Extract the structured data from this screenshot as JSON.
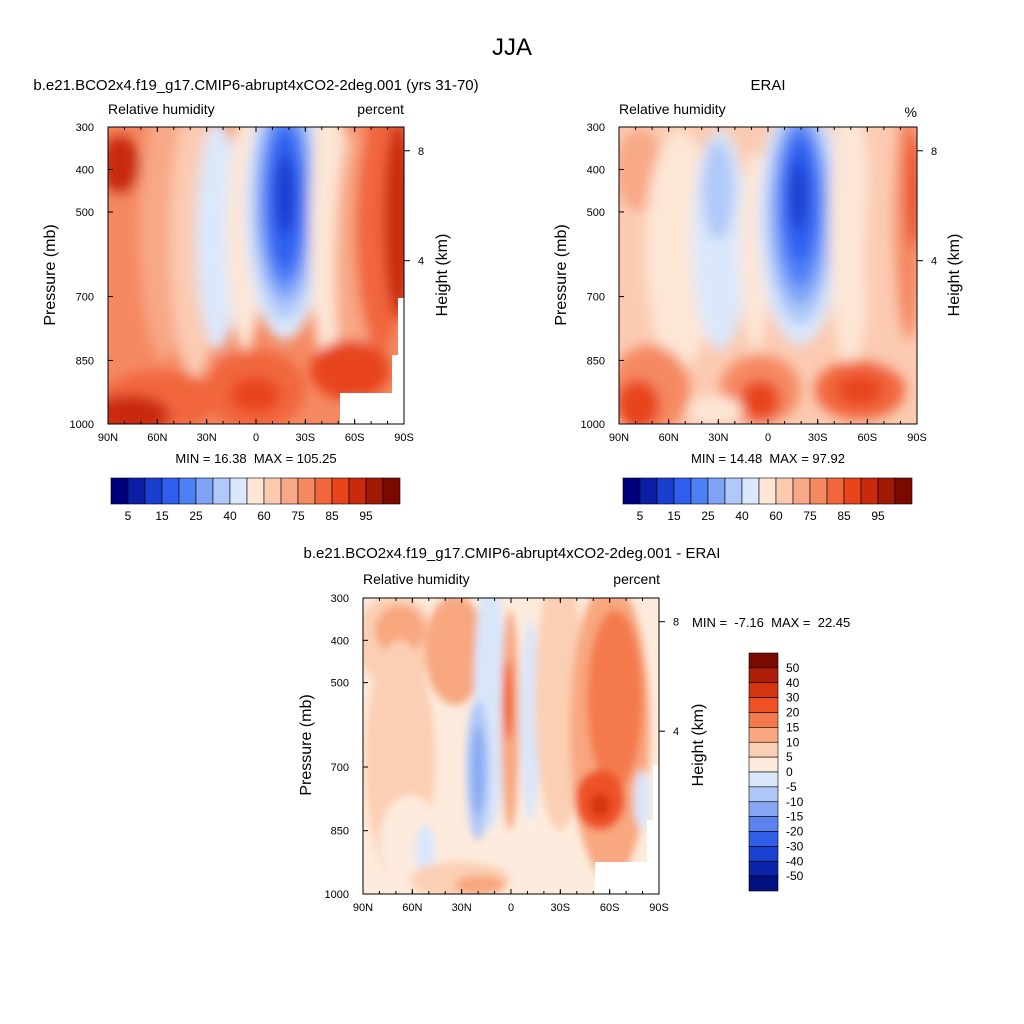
{
  "figure": {
    "title": "JJA"
  },
  "chart_data": [
    {
      "type": "heatmap",
      "title": "b.e21.BCO2x4.f19_g17.CMIP6-abrupt4xCO2-2deg.001 (yrs 31-70)",
      "subtitle_left": "Relative humidity",
      "subtitle_right": "percent",
      "xlabel": "",
      "ylabel": "Pressure (mb)",
      "ylabel_right": "Height (km)",
      "x_ticks": [
        "90N",
        "60N",
        "30N",
        "0",
        "30S",
        "60S",
        "90S"
      ],
      "y_ticks": [
        "300",
        "400",
        "500",
        "700",
        "850",
        "1000"
      ],
      "right_ticks": [
        "8",
        "4"
      ],
      "stats": "MIN = 16.38  MAX = 105.25",
      "colorbar_labels": [
        "5",
        "15",
        "25",
        "40",
        "60",
        "75",
        "85",
        "95"
      ]
    },
    {
      "type": "heatmap",
      "title": "ERAI",
      "subtitle_left": "Relative humidity",
      "subtitle_right": "%",
      "xlabel": "",
      "ylabel": "Pressure (mb)",
      "ylabel_right": "Height (km)",
      "x_ticks": [
        "90N",
        "60N",
        "30N",
        "0",
        "30S",
        "60S",
        "90S"
      ],
      "y_ticks": [
        "300",
        "400",
        "500",
        "700",
        "850",
        "1000"
      ],
      "right_ticks": [
        "8",
        "4"
      ],
      "stats": "MIN = 14.48  MAX = 97.92",
      "colorbar_labels": [
        "5",
        "15",
        "25",
        "40",
        "60",
        "75",
        "85",
        "95"
      ]
    },
    {
      "type": "heatmap",
      "title": "b.e21.BCO2x4.f19_g17.CMIP6-abrupt4xCO2-2deg.001 - ERAI",
      "subtitle_left": "Relative humidity",
      "subtitle_right": "percent",
      "xlabel": "",
      "ylabel": "Pressure (mb)",
      "ylabel_right": "Height (km)",
      "x_ticks": [
        "90N",
        "60N",
        "30N",
        "0",
        "30S",
        "60S",
        "90S"
      ],
      "y_ticks": [
        "300",
        "400",
        "500",
        "700",
        "850",
        "1000"
      ],
      "right_ticks": [
        "8",
        "4"
      ],
      "stats": "MIN =  -7.16  MAX =  22.45",
      "colorbar_labels": [
        "50",
        "40",
        "30",
        "20",
        "15",
        "10",
        "5",
        "0",
        "-5",
        "-10",
        "-15",
        "-20",
        "-30",
        "-40",
        "-50"
      ]
    }
  ],
  "colors": {
    "abs_scale": [
      "#00007f",
      "#0a1fa6",
      "#1a3ed0",
      "#2f5ef0",
      "#4d7ff5",
      "#7ea3f7",
      "#b1c9f9",
      "#dbe8fb",
      "#fde6d6",
      "#fbcab1",
      "#f8a886",
      "#f58962",
      "#f1663c",
      "#e8451f",
      "#c92a0d",
      "#a11a05",
      "#7a0a00"
    ],
    "diff_scale": [
      "#7a0a00",
      "#ac1e07",
      "#d63410",
      "#ef5127",
      "#f47a4e",
      "#f8a77f",
      "#fbcfb3",
      "#fdebdd",
      "#d9e6fa",
      "#b0c8f7",
      "#86a7f3",
      "#5a83ef",
      "#2f5ee8",
      "#1b3fd1",
      "#0a23a8",
      "#00107e"
    ]
  }
}
